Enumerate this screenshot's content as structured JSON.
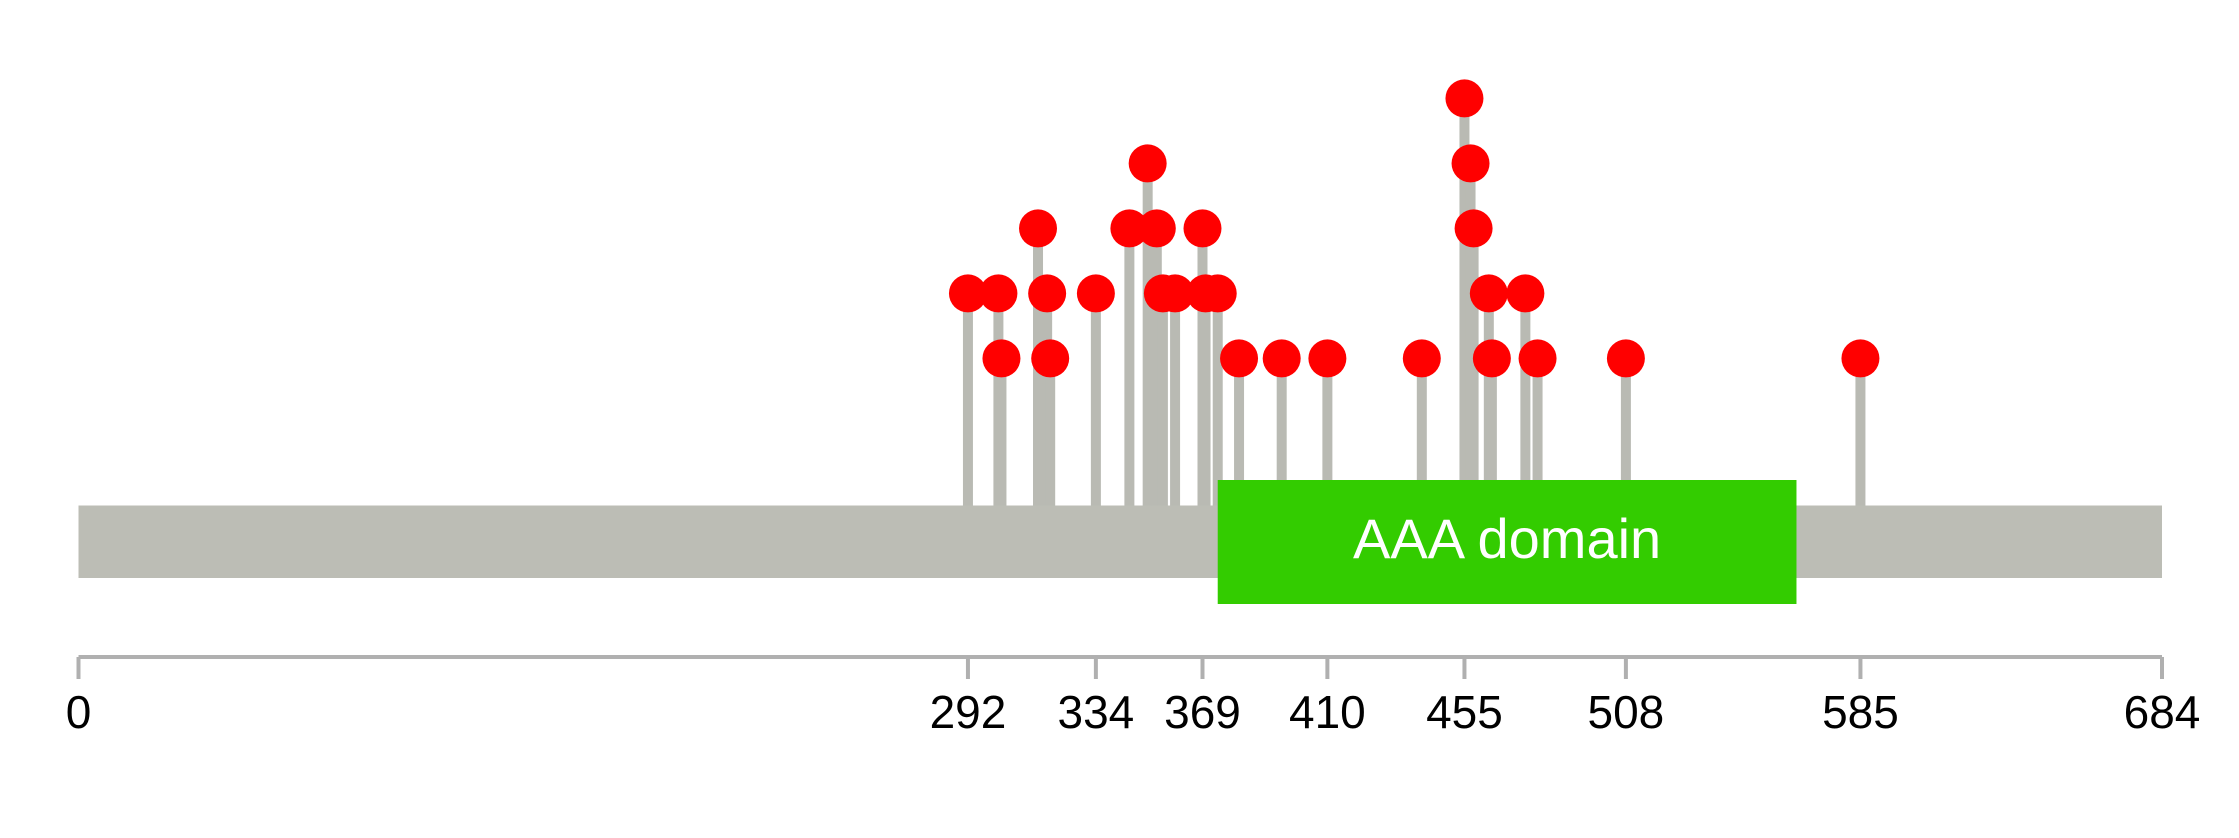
{
  "chart_data": {
    "type": "lollipop",
    "xlim": [
      0,
      684
    ],
    "xticks": [
      0,
      292,
      334,
      369,
      410,
      455,
      508,
      585,
      684
    ],
    "protein_color": "#bcbdb5",
    "stem_color": "#b9bab3",
    "color": "#ff0000",
    "domains": [
      {
        "start": 374,
        "end": 564,
        "label": "AAA domain",
        "color": "#33cc00"
      }
    ],
    "x": [
      292,
      302,
      303,
      315,
      318,
      319,
      334,
      345,
      351,
      354,
      356,
      360,
      369,
      370,
      374,
      381,
      395,
      410,
      441,
      455,
      457,
      458,
      463,
      464,
      475,
      479,
      508,
      585
    ],
    "values": [
      2,
      2,
      1,
      3,
      2,
      1,
      2,
      3,
      4,
      3,
      2,
      2,
      3,
      2,
      2,
      1,
      1,
      1,
      1,
      5,
      4,
      3,
      2,
      1,
      2,
      1,
      1,
      1
    ]
  }
}
